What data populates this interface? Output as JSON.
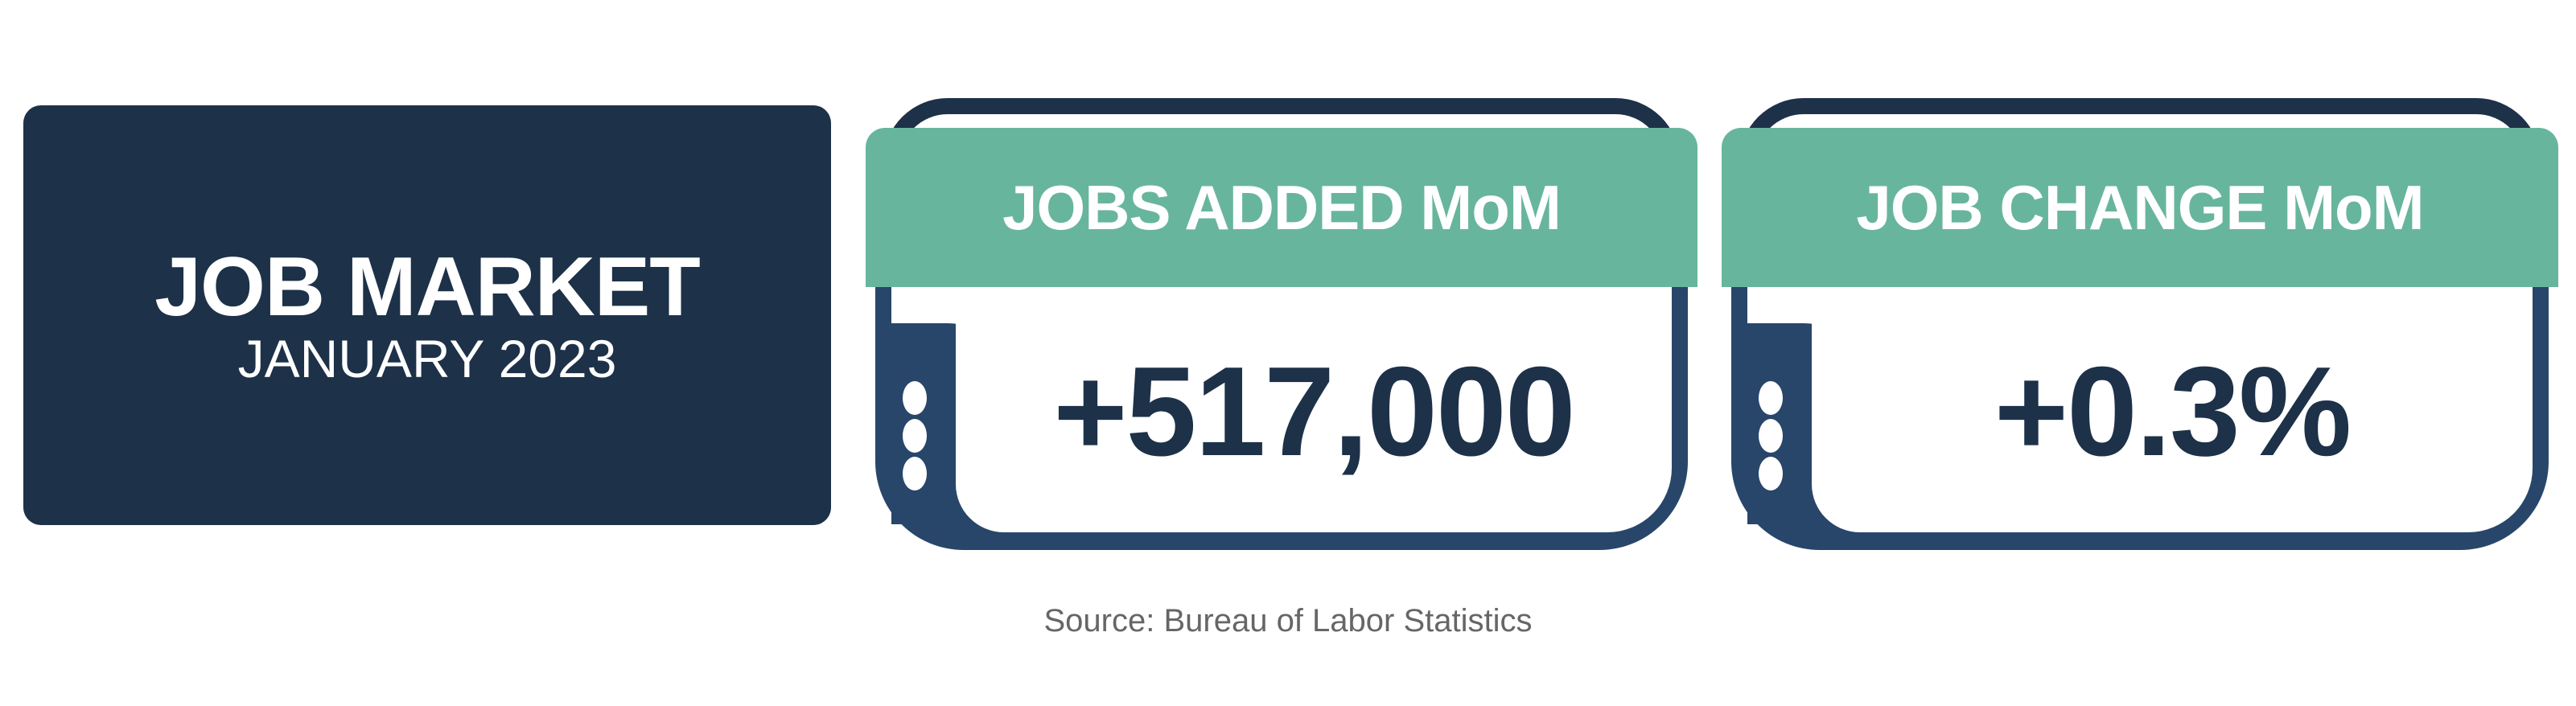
{
  "title": {
    "main": "JOB MARKET",
    "sub": "JANUARY 2023"
  },
  "cards": [
    {
      "label": "JOBS ADDED MoM",
      "value": "+517,000"
    },
    {
      "label": "JOB CHANGE MoM",
      "value": "+0.3%"
    }
  ],
  "source": "Source: Bureau of Labor Statistics",
  "colors": {
    "navy": "#1d3149",
    "green": "#68b59d",
    "panel": "#28466a"
  }
}
